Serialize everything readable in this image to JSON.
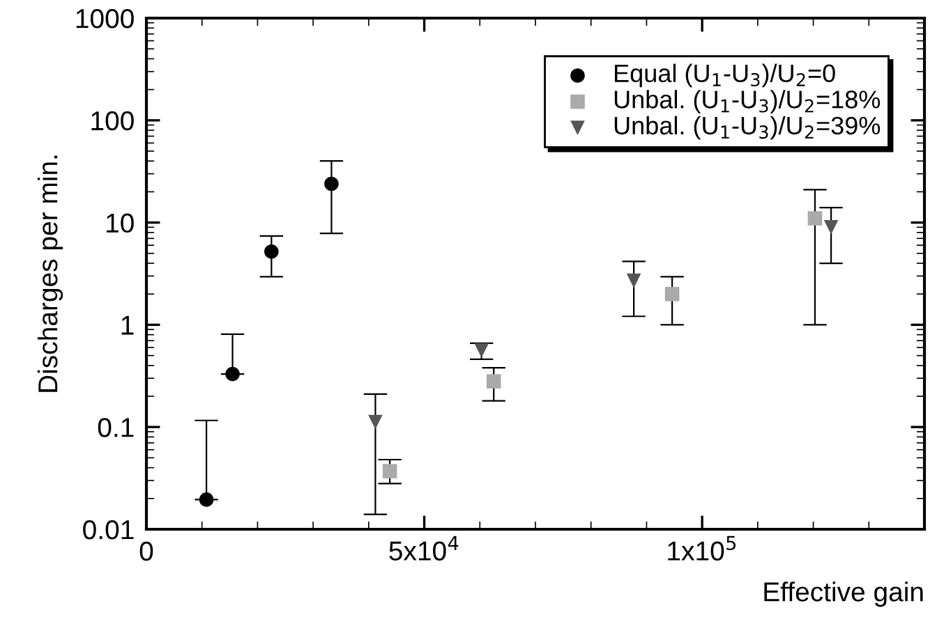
{
  "chart_data": {
    "type": "scatter",
    "xlabel": "Effective gain",
    "ylabel": "Discharges per min.",
    "log": "y",
    "grid": false,
    "legend": "top right",
    "xlim": [
      0,
      140000
    ],
    "xticks": [
      0,
      {
        "value": 50000,
        "label": "5x10$^{4}$"
      },
      {
        "value": 100000,
        "label": "1x10$^{5}$"
      }
    ],
    "ylim": [
      0.01,
      1000
    ],
    "yticks": [
      0.01,
      0.1,
      1,
      10,
      100,
      1000
    ],
    "series": [
      {
        "name": "Equal (U$_{1}$-U$_{3}$)/U$_{2}$=0",
        "color": "#000000",
        "marker": "circle",
        "x": [
          10800,
          15500,
          22500,
          33300
        ],
        "values": [
          0.0195,
          0.33,
          5.2,
          23.9
        ],
        "errors": [
          [
            0.0195,
            0.116
          ],
          [
            0.33,
            0.81
          ],
          [
            2.95,
            7.4
          ],
          [
            7.85,
            40
          ]
        ]
      },
      {
        "name": "Unbal. (U$_{1}$-U$_{3}$)/U$_{2}$=18%",
        "color": "#aaaaaa",
        "marker": "square",
        "x": [
          43800,
          62500,
          94600,
          120300
        ],
        "values": [
          0.037,
          0.28,
          2.0,
          11
        ],
        "errors": [
          [
            0.028,
            0.048
          ],
          [
            0.18,
            0.38
          ],
          [
            1.0,
            2.95
          ],
          [
            1.0,
            21
          ]
        ]
      },
      {
        "name": "Unbal. (U$_{1}$-U$_{3}$)/U$_{2}$=39%",
        "color": "#555555",
        "marker": "triangle",
        "x": [
          41200,
          60300,
          87700,
          123200
        ],
        "values": [
          0.112,
          0.56,
          2.7,
          9
        ],
        "errors": [
          [
            0.014,
            0.21
          ],
          [
            0.46,
            0.66
          ],
          [
            1.21,
            4.17
          ],
          [
            4.0,
            14
          ]
        ]
      }
    ]
  }
}
